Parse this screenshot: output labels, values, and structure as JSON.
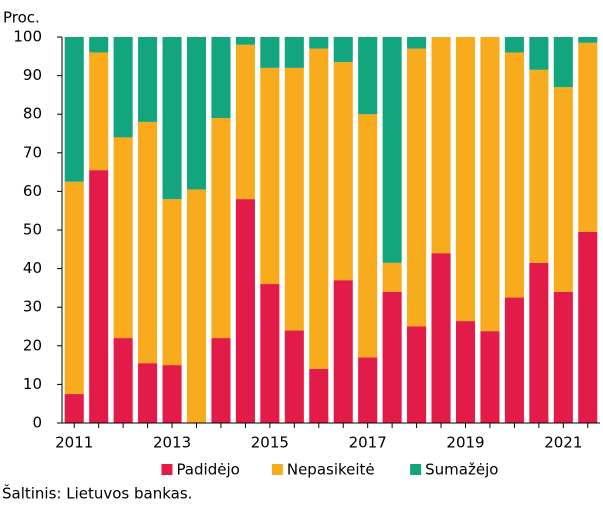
{
  "chart_data": {
    "type": "stacked_bar",
    "y_label": "Proc.",
    "source": "Šaltinis: Lietuvos bankas.",
    "categories": [
      "2011",
      null,
      null,
      null,
      "2013",
      null,
      null,
      null,
      "2015",
      null,
      null,
      null,
      "2017",
      null,
      null,
      null,
      "2019",
      null,
      null,
      null,
      "2021",
      null
    ],
    "series": [
      {
        "name": "Padidėjo",
        "color": "#e31b48",
        "values": [
          7.5,
          65.5,
          22,
          15.5,
          15,
          0,
          22,
          58,
          36,
          24,
          14,
          37,
          17,
          34,
          25,
          44,
          26.4,
          23.8,
          32.5,
          41.5,
          34,
          49.5
        ]
      },
      {
        "name": "Nepasikeitė",
        "color": "#f8ab1c",
        "values": [
          55,
          30.5,
          52,
          62.5,
          43,
          60.5,
          57,
          40,
          56,
          68,
          83,
          56.5,
          63,
          7.5,
          72,
          56,
          73.6,
          76.2,
          63.5,
          50,
          53,
          49
        ]
      },
      {
        "name": "Sumažėjo",
        "color": "#13a57e",
        "values": [
          37.5,
          4,
          26,
          22,
          42,
          39.5,
          21,
          2,
          8,
          8,
          3,
          6.5,
          20,
          58.5,
          3,
          0,
          0,
          0,
          4,
          8.5,
          13,
          1.5
        ]
      }
    ],
    "ylim": [
      0,
      100
    ],
    "yticks": [
      0,
      10,
      20,
      30,
      40,
      50,
      60,
      70,
      80,
      90,
      100
    ],
    "legend": "bottom"
  }
}
